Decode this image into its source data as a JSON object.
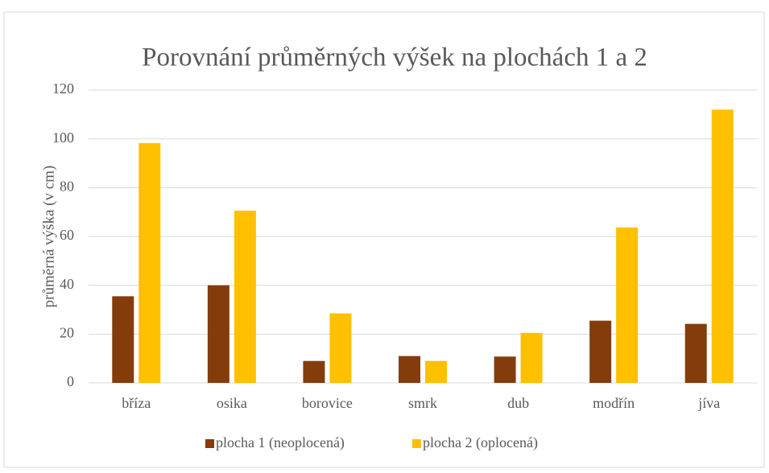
{
  "chart_data": {
    "type": "bar",
    "title": "Porovnání průměrných výšek na plochách 1 a 2",
    "y_label": "průměrná výška (v cm)",
    "categories": [
      "bříza",
      "osika",
      "borovice",
      "smrk",
      "dub",
      "modřín",
      "jíva"
    ],
    "series": [
      {
        "name": "plocha 1 (neoplocená)",
        "color": "#843c0c",
        "values": [
          35.5,
          40,
          9,
          11,
          10.8,
          25.5,
          24.2
        ]
      },
      {
        "name": "plocha 2 (oplocená)",
        "color": "#ffc000",
        "values": [
          98.3,
          70.6,
          28.5,
          9,
          20.5,
          63.7,
          112
        ]
      }
    ],
    "ylim": [
      0,
      120
    ],
    "yticks": [
      0,
      20,
      40,
      60,
      80,
      100,
      120
    ],
    "grid": true,
    "legend": "bottom"
  }
}
